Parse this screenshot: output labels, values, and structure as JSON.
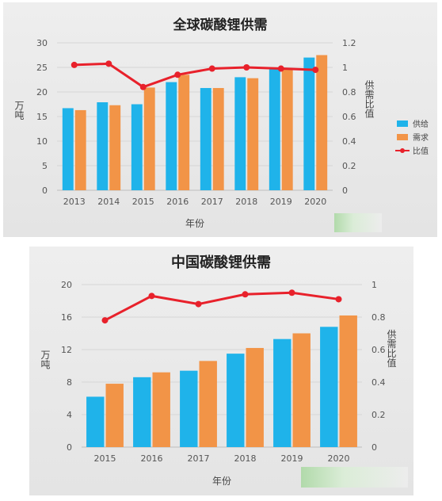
{
  "colors": {
    "supply": "#1fb3ea",
    "demand": "#f29447",
    "ratio": "#e8212b",
    "grid": "#d6d6d6"
  },
  "chart_data": [
    {
      "type": "bar",
      "title": "全球碳酸锂供需",
      "xlabel": "年份",
      "ylabel": "万吨",
      "y2label": "供需比值",
      "categories": [
        "2013",
        "2014",
        "2015",
        "2016",
        "2017",
        "2018",
        "2019",
        "2020"
      ],
      "ylim": [
        0,
        30
      ],
      "y_ticks": [
        "0",
        "5",
        "10",
        "15",
        "20",
        "25",
        "30"
      ],
      "y2lim": [
        0,
        1.2
      ],
      "y2_ticks": [
        "0",
        "0.2",
        "0.4",
        "0.6",
        "0.8",
        "1",
        "1.2"
      ],
      "legend": "right",
      "series": [
        {
          "name": "供给",
          "type": "bar",
          "values": [
            16.7,
            17.9,
            17.5,
            22.0,
            20.8,
            23.0,
            24.8,
            27.0
          ]
        },
        {
          "name": "需求",
          "type": "bar",
          "values": [
            16.3,
            17.3,
            20.9,
            23.5,
            20.8,
            22.8,
            24.8,
            27.5
          ]
        },
        {
          "name": "比值",
          "type": "line",
          "axis": "right",
          "values": [
            1.02,
            1.03,
            0.84,
            0.94,
            0.99,
            1.0,
            0.99,
            0.98
          ]
        }
      ]
    },
    {
      "type": "bar",
      "title": "中国碳酸锂供需",
      "xlabel": "年份",
      "ylabel": "万吨",
      "y2label": "供需比值",
      "categories": [
        "2015",
        "2016",
        "2017",
        "2018",
        "2019",
        "2020"
      ],
      "ylim": [
        0,
        20
      ],
      "y_ticks": [
        "0",
        "4",
        "8",
        "12",
        "16",
        "20"
      ],
      "y2lim": [
        0,
        1
      ],
      "y2_ticks": [
        "0",
        "0.2",
        "0.4",
        "0.6",
        "0.8",
        "1"
      ],
      "series": [
        {
          "name": "供给",
          "type": "bar",
          "values": [
            6.2,
            8.6,
            9.4,
            11.5,
            13.3,
            14.8
          ]
        },
        {
          "name": "需求",
          "type": "bar",
          "values": [
            7.8,
            9.2,
            10.6,
            12.2,
            14.0,
            16.2
          ]
        },
        {
          "name": "比值",
          "type": "line",
          "axis": "right",
          "values": [
            0.78,
            0.93,
            0.88,
            0.94,
            0.95,
            0.91
          ]
        }
      ]
    }
  ]
}
